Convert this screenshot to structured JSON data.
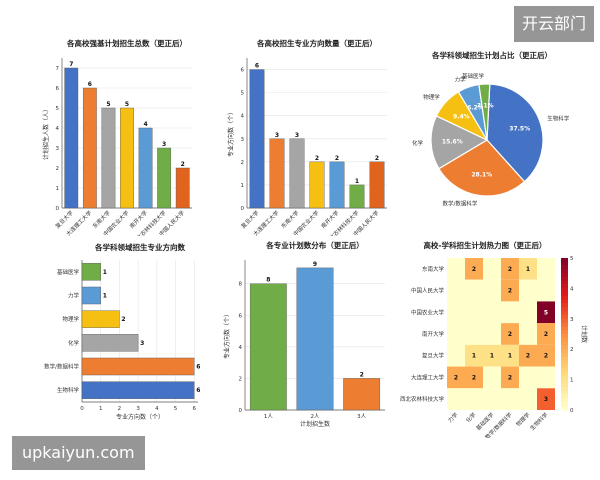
{
  "watermark": {
    "top_right": "开云部门",
    "bottom_left": "upkaiyun.com"
  },
  "colors": {
    "blue": "#4472c4",
    "orange": "#ed7d31",
    "gray": "#a5a5a5",
    "yellow": "#f6c013",
    "sky": "#5b9bd5",
    "green": "#70ad47",
    "darkorange": "#e0641d"
  },
  "chart_data": [
    {
      "type": "bar",
      "title": "各高校强基计划招生总数（更正后）",
      "ylabel": "计划招生人数（人）",
      "categories": [
        "复旦大学",
        "大连理工大学",
        "东南大学",
        "中国农业大学",
        "南开大学",
        "西北农林科技大学",
        "中国人民大学"
      ],
      "values": [
        7,
        6,
        5,
        5,
        4,
        3,
        2
      ],
      "ylim": [
        0,
        7.5
      ],
      "yticks": [
        0,
        1,
        2,
        3,
        4,
        5,
        6,
        7
      ],
      "colors": [
        "#4472c4",
        "#ed7d31",
        "#a5a5a5",
        "#f6c013",
        "#5b9bd5",
        "#70ad47",
        "#e0641d"
      ],
      "grid": true
    },
    {
      "type": "bar",
      "title": "各高校招生专业方向数量（更正后）",
      "ylabel": "专业方向数（个）",
      "categories": [
        "复旦大学",
        "大连理工大学",
        "东南大学",
        "中国农业大学",
        "南开大学",
        "西北农林科技大学",
        "中国人民大学"
      ],
      "values": [
        6,
        3,
        3,
        2,
        2,
        1,
        2
      ],
      "ylim": [
        0,
        6.5
      ],
      "yticks": [
        0,
        1,
        2,
        3,
        4,
        5,
        6
      ],
      "colors": [
        "#4472c4",
        "#ed7d31",
        "#a5a5a5",
        "#f6c013",
        "#5b9bd5",
        "#70ad47",
        "#e0641d"
      ],
      "grid": true
    },
    {
      "type": "pie",
      "title": "各学科领域招生计划占比（更正后）",
      "slices": [
        {
          "label": "生物科学",
          "value": 37.5,
          "text": "37.5%",
          "color": "#4472c4"
        },
        {
          "label": "数学/数据科学",
          "value": 28.1,
          "text": "28.1%",
          "color": "#ed7d31"
        },
        {
          "label": "化学",
          "value": 15.6,
          "text": "15.6%",
          "color": "#a5a5a5"
        },
        {
          "label": "物理学",
          "value": 9.4,
          "text": "9.4%",
          "color": "#f6c013"
        },
        {
          "label": "力学",
          "value": 6.2,
          "text": "6.2%",
          "color": "#5b9bd5"
        },
        {
          "label": "基础医学",
          "value": 3.1,
          "text": "3.1%",
          "color": "#70ad47"
        }
      ]
    },
    {
      "type": "bar",
      "orientation": "horizontal",
      "title": "各学科领域招生专业方向数",
      "xlabel": "专业方向数（个）",
      "categories": [
        "基础医学",
        "力学",
        "物理学",
        "化学",
        "数学/数据科学",
        "生物科学"
      ],
      "values": [
        1,
        1,
        2,
        3,
        6,
        6
      ],
      "xlim": [
        0,
        6.2
      ],
      "xticks": [
        0,
        1,
        2,
        3,
        4,
        5,
        6
      ],
      "colors": [
        "#70ad47",
        "#5b9bd5",
        "#f6c013",
        "#a5a5a5",
        "#ed7d31",
        "#4472c4"
      ],
      "grid": true
    },
    {
      "type": "bar",
      "title": "各专业计划数分布（更正后）",
      "xlabel": "计划招生数",
      "ylabel": "专业方向数（个）",
      "categories": [
        "1人",
        "2人",
        "3人"
      ],
      "values": [
        8,
        9,
        2
      ],
      "ylim": [
        0,
        9.5
      ],
      "yticks": [
        0,
        2,
        4,
        6,
        8
      ],
      "colors": [
        "#70ad47",
        "#5b9bd5",
        "#ed7d31"
      ],
      "grid": true
    },
    {
      "type": "heatmap",
      "title": "高校-学科招生计划热力图（更正后）",
      "rows": [
        "东南大学",
        "中国人民大学",
        "中国农业大学",
        "南开大学",
        "复旦大学",
        "大连理工大学",
        "西北农林科技大学"
      ],
      "cols": [
        "力学",
        "化学",
        "基础医学",
        "数学/数据科学",
        "物理学",
        "生物科学"
      ],
      "values": [
        [
          0,
          2,
          0,
          2,
          1,
          0
        ],
        [
          0,
          0,
          0,
          2,
          0,
          0
        ],
        [
          0,
          0,
          0,
          0,
          0,
          5
        ],
        [
          0,
          0,
          0,
          2,
          0,
          2
        ],
        [
          0,
          1,
          1,
          1,
          2,
          2
        ],
        [
          2,
          2,
          0,
          2,
          0,
          0
        ],
        [
          0,
          0,
          0,
          0,
          0,
          3
        ]
      ],
      "colorbar": {
        "label": "计划数",
        "ticks": [
          0,
          1,
          2,
          3,
          4,
          5
        ],
        "range": [
          0,
          5
        ]
      }
    }
  ]
}
